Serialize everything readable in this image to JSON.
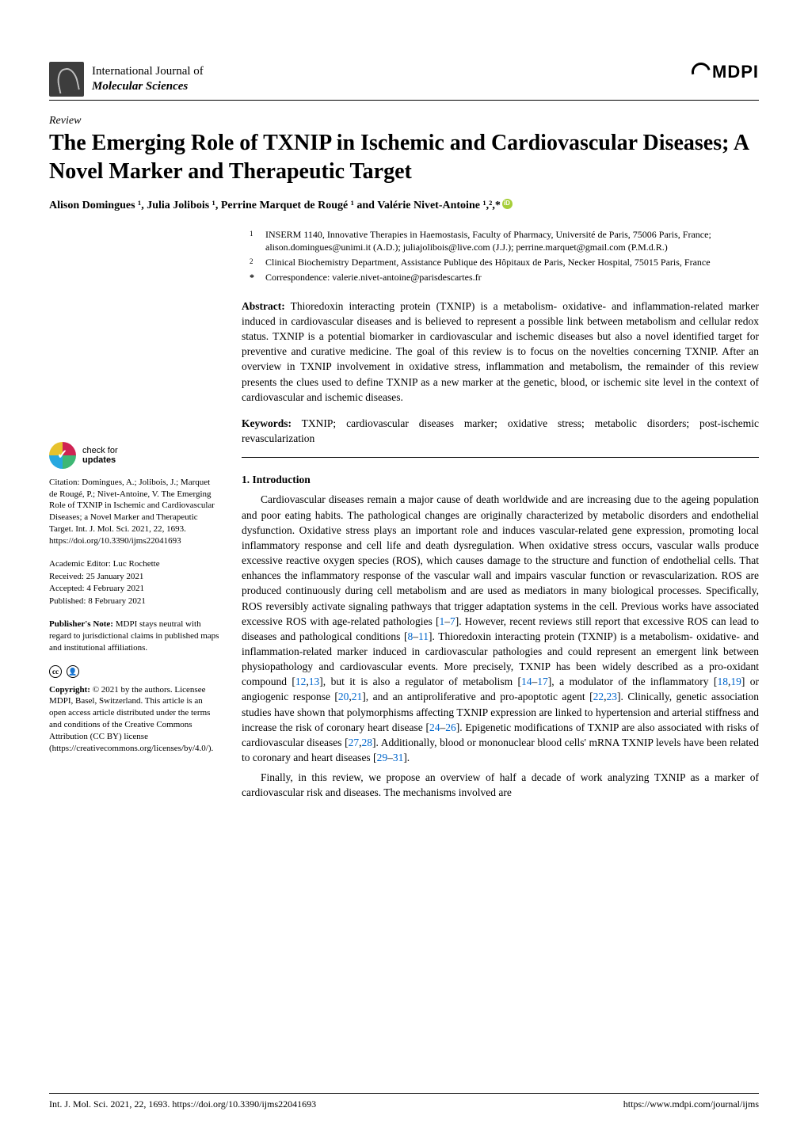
{
  "header": {
    "journal_line1": "International Journal of",
    "journal_line2": "Molecular Sciences",
    "publisher": "MDPI"
  },
  "article": {
    "type": "Review",
    "title": "The Emerging Role of TXNIP in Ischemic and Cardiovascular Diseases; A Novel Marker and Therapeutic Target",
    "authors": "Alison Domingues ¹, Julia Jolibois ¹, Perrine Marquet de Rougé ¹ and Valérie Nivet-Antoine ¹,²,*"
  },
  "affiliations": [
    {
      "num": "1",
      "text": "INSERM 1140, Innovative Therapies in Haemostasis, Faculty of Pharmacy, Université de Paris, 75006 Paris, France; alison.domingues@unimi.it (A.D.); juliajolibois@live.com (J.J.); perrine.marquet@gmail.com (P.M.d.R.)"
    },
    {
      "num": "2",
      "text": "Clinical Biochemistry Department, Assistance Publique des Hôpitaux de Paris, Necker Hospital, 75015 Paris, France"
    },
    {
      "num": "*",
      "text": "Correspondence: valerie.nivet-antoine@parisdescartes.fr"
    }
  ],
  "abstract_label": "Abstract:",
  "abstract": " Thioredoxin interacting protein (TXNIP) is a metabolism- oxidative- and inflammation-related marker induced in cardiovascular diseases and is believed to represent a possible link between metabolism and cellular redox status. TXNIP is a potential biomarker in cardiovascular and ischemic diseases but also a novel identified target for preventive and curative medicine. The goal of this review is to focus on the novelties concerning TXNIP. After an overview in TXNIP involvement in oxidative stress, inflammation and metabolism, the remainder of this review presents the clues used to define TXNIP as a new marker at the genetic, blood, or ischemic site level in the context of cardiovascular and ischemic diseases.",
  "keywords_label": "Keywords:",
  "keywords": " TXNIP; cardiovascular diseases marker; oxidative stress; metabolic disorders; post-ischemic revascularization",
  "sidebar": {
    "check_label": "check for",
    "check_bold": "updates",
    "citation": "Citation: Domingues, A.; Jolibois, J.; Marquet de Rougé, P.; Nivet-Antoine, V. The Emerging Role of TXNIP in Ischemic and Cardiovascular Diseases; a Novel Marker and Therapeutic Target. Int. J. Mol. Sci. 2021, 22, 1693. https://doi.org/10.3390/ijms22041693",
    "editor": "Academic Editor: Luc Rochette",
    "received": "Received: 25 January 2021",
    "accepted": "Accepted: 4 February 2021",
    "published": "Published: 8 February 2021",
    "pubnote_label": "Publisher's Note:",
    "pubnote": " MDPI stays neutral with regard to jurisdictional claims in published maps and institutional affiliations.",
    "copyright_label": "Copyright:",
    "copyright": " © 2021 by the authors. Licensee MDPI, Basel, Switzerland. This article is an open access article distributed under the terms and conditions of the Creative Commons Attribution (CC BY) license (https://creativecommons.org/licenses/by/4.0/)."
  },
  "section": {
    "heading": "1. Introduction",
    "para1_a": "Cardiovascular diseases remain a major cause of death worldwide and are increasing due to the ageing population and poor eating habits. The pathological changes are originally characterized by metabolic disorders and endothelial dysfunction. Oxidative stress plays an important role and induces vascular-related gene expression, promoting local inflammatory response and cell life and death dysregulation. When oxidative stress occurs, vascular walls produce excessive reactive oxygen species (ROS), which causes damage to the structure and function of endothelial cells. That enhances the inflammatory response of the vascular wall and impairs vascular function or revascularization. ROS are produced continuously during cell metabolism and are used as mediators in many biological processes. Specifically, ROS reversibly activate signaling pathways that trigger adaptation systems in the cell. Previous works have associated excessive ROS with age-related pathologies [",
    "ref1": "1",
    "dash1": "–",
    "ref2": "7",
    "para1_b": "]. However, recent reviews still report that excessive ROS can lead to diseases and pathological conditions [",
    "ref3": "8",
    "dash2": "–",
    "ref4": "11",
    "para1_c": "]. Thioredoxin interacting protein (TXNIP) is a metabolism- oxidative- and inflammation-related marker induced in cardiovascular pathologies and could represent an emergent link between physiopathology and cardiovascular events. More precisely, TXNIP has been widely described as a pro-oxidant compound [",
    "ref5": "12",
    "comma1": ",",
    "ref6": "13",
    "para1_d": "], but it is also a regulator of metabolism [",
    "ref7": "14",
    "dash3": "–",
    "ref8": "17",
    "para1_e": "], a modulator of the inflammatory [",
    "ref9": "18",
    "comma2": ",",
    "ref10": "19",
    "para1_f": "] or angiogenic response [",
    "ref11": "20",
    "comma3": ",",
    "ref12": "21",
    "para1_g": "], and an antiproliferative and pro-apoptotic agent [",
    "ref13": "22",
    "comma4": ",",
    "ref14": "23",
    "para1_h": "]. Clinically, genetic association studies have shown that polymorphisms affecting TXNIP expression are linked to hypertension and arterial stiffness and increase the risk of coronary heart disease [",
    "ref15": "24",
    "dash4": "–",
    "ref16": "26",
    "para1_i": "]. Epigenetic modifications of TXNIP are also associated with risks of cardiovascular diseases [",
    "ref17": "27",
    "comma5": ",",
    "ref18": "28",
    "para1_j": "]. Additionally, blood or mononuclear blood cells' mRNA TXNIP levels have been related to coronary and heart diseases [",
    "ref19": "29",
    "dash5": "–",
    "ref20": "31",
    "para1_k": "].",
    "para2": "Finally, in this review, we propose an overview of half a decade of work analyzing TXNIP as a marker of cardiovascular risk and diseases. The mechanisms involved are"
  },
  "footer": {
    "left": "Int. J. Mol. Sci. 2021, 22, 1693. https://doi.org/10.3390/ijms22041693",
    "right": "https://www.mdpi.com/journal/ijms"
  }
}
